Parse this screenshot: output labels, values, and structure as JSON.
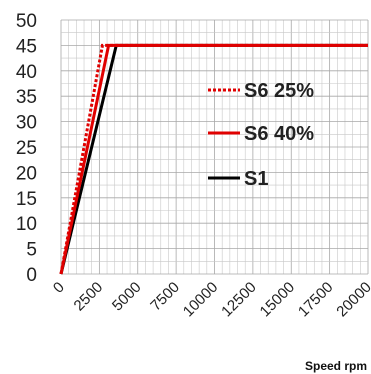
{
  "chart_data": {
    "type": "line",
    "xlabel": "Speed rpm",
    "ylabel": "",
    "xlim": [
      0,
      20000
    ],
    "ylim": [
      0,
      50
    ],
    "xticks": [
      "0",
      "2500",
      "5000",
      "7500",
      "10000",
      "12500",
      "15000",
      "17500",
      "20000"
    ],
    "yticks": [
      "0",
      "5",
      "10",
      "15",
      "20",
      "25",
      "30",
      "35",
      "40",
      "45",
      "50"
    ],
    "grid": true,
    "legend_position": "right",
    "series": [
      {
        "name": "S6 25%",
        "color": "#e00000",
        "style": "dotted",
        "x": [
          0,
          2700,
          20000
        ],
        "y": [
          0,
          45,
          45
        ]
      },
      {
        "name": "S6 40%",
        "color": "#e00000",
        "style": "solid",
        "x": [
          0,
          3100,
          20000
        ],
        "y": [
          0,
          45,
          45
        ]
      },
      {
        "name": "S1",
        "color": "#000000",
        "style": "solid",
        "x": [
          0,
          3600,
          20000
        ],
        "y": [
          0,
          45,
          45
        ]
      }
    ]
  }
}
